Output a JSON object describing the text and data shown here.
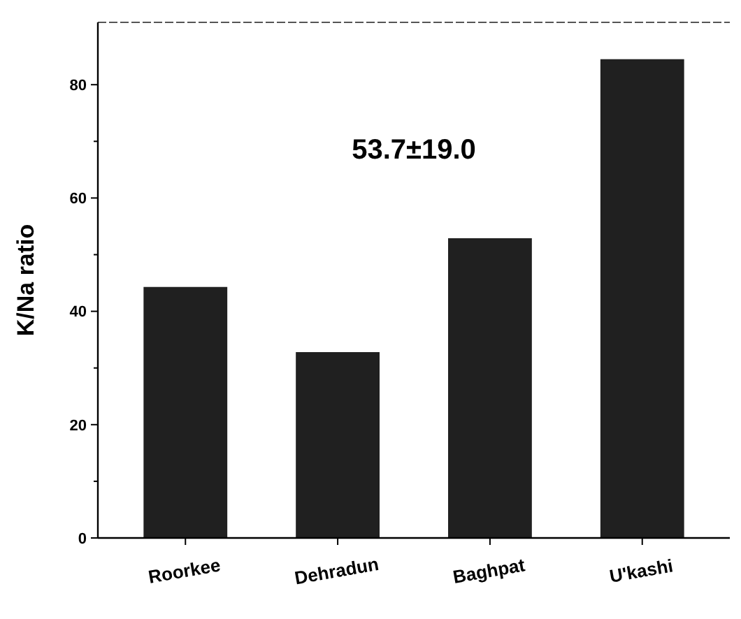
{
  "chart_data": {
    "type": "bar",
    "ylabel": "K/Na ratio",
    "categories": [
      "Roorkee",
      "Dehradun",
      "Baghpat",
      "U'kashi"
    ],
    "values": [
      44.3,
      32.8,
      52.9,
      84.5
    ],
    "color": "#202020",
    "ylim": [
      0,
      91
    ],
    "yticks": [
      0,
      {
        "value": 10,
        "label": null
      },
      20,
      {
        "value": 30,
        "label": null
      },
      40,
      {
        "value": 50,
        "label": null
      },
      60,
      {
        "value": 70,
        "label": null
      },
      80
    ],
    "annotations": [
      "53.7±19.0"
    ],
    "grid": false
  }
}
